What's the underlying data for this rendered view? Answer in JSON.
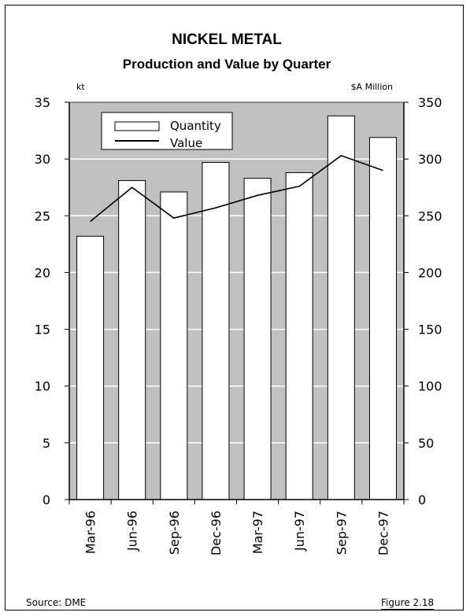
{
  "chart_data": {
    "type": "bar+line",
    "title": "NICKEL METAL",
    "subtitle": "Production and Value by Quarter",
    "categories": [
      "Mar-96",
      "Jun-96",
      "Sep-96",
      "Dec-96",
      "Mar-97",
      "Jun-97",
      "Sep-97",
      "Dec-97"
    ],
    "series": [
      {
        "name": "Quantity",
        "type": "bar",
        "axis": "left",
        "values": [
          23.2,
          28.1,
          27.1,
          29.7,
          28.3,
          28.8,
          33.8,
          31.9
        ],
        "color": "#ffffff"
      },
      {
        "name": "Value",
        "type": "line",
        "axis": "right",
        "values": [
          245,
          275,
          248,
          257,
          268,
          276,
          303,
          290
        ],
        "color": "#000000"
      }
    ],
    "left_axis": {
      "unit": "kt",
      "ylim": [
        0,
        35
      ],
      "ticks": [
        0,
        5,
        10,
        15,
        20,
        25,
        30,
        35
      ]
    },
    "right_axis": {
      "unit": "$A Million",
      "ylim": [
        0,
        350
      ],
      "ticks": [
        0,
        50,
        100,
        150,
        200,
        250,
        300,
        350
      ]
    },
    "plot_background": "#c0c0c0",
    "grid": true,
    "legend_position": "top-left"
  },
  "footer": {
    "source": "Source: DME",
    "figure": "Figure 2.18"
  }
}
